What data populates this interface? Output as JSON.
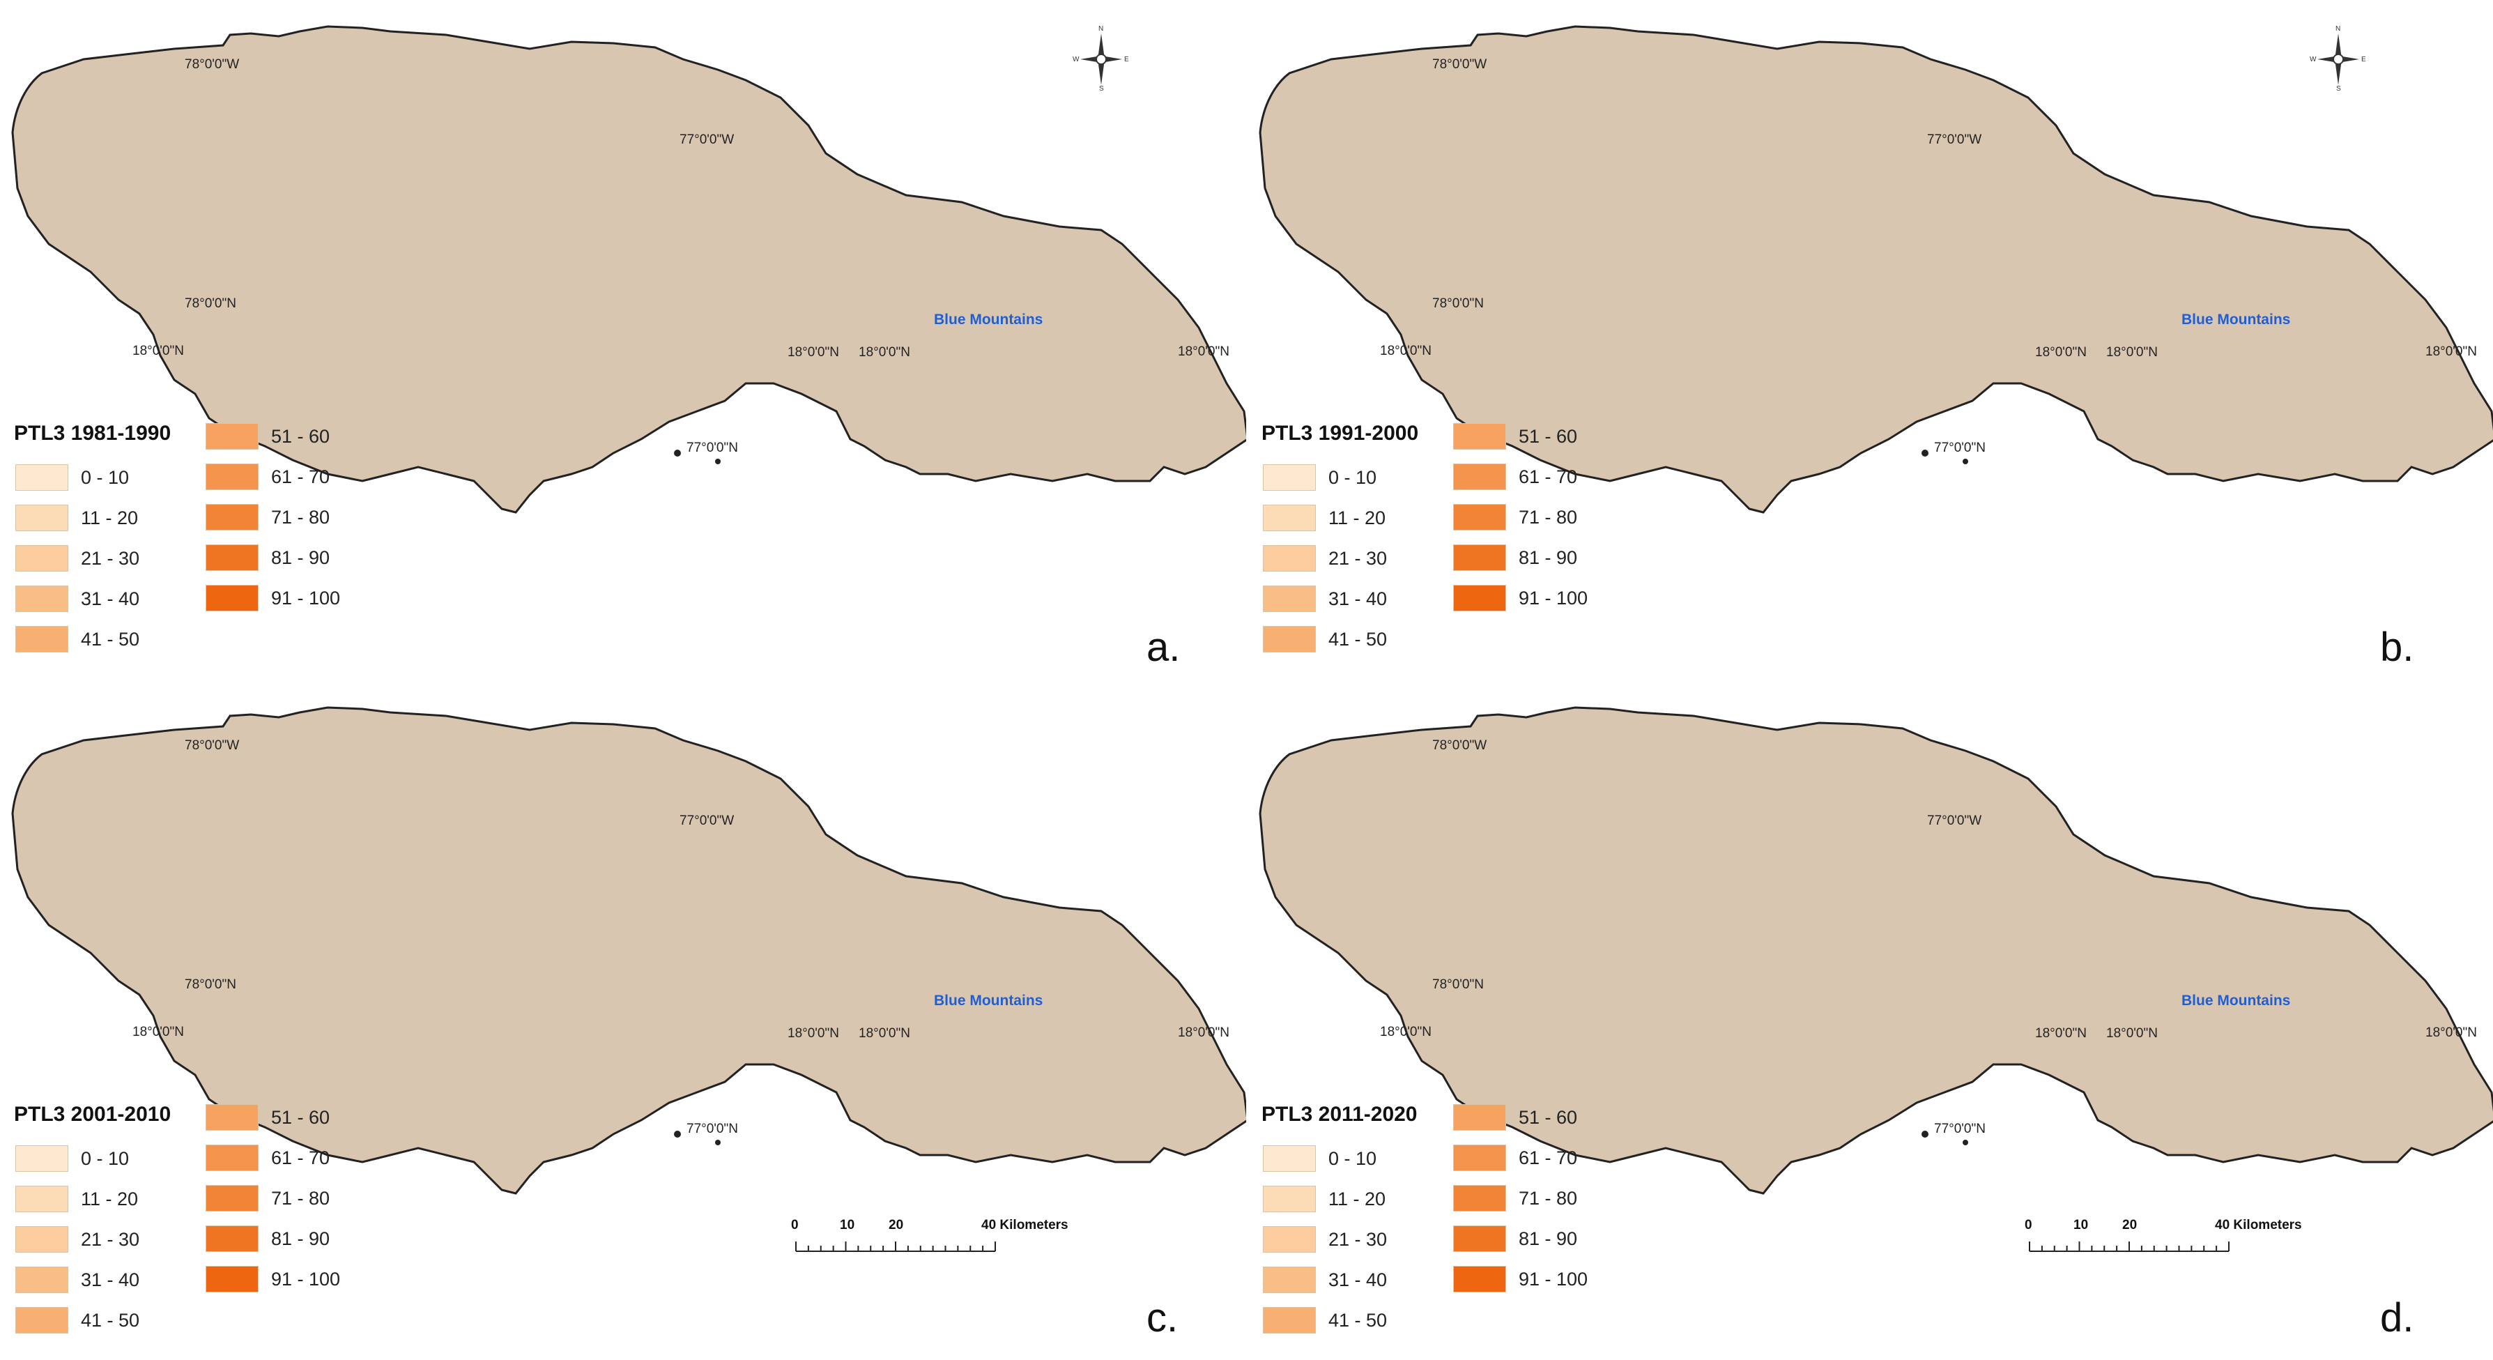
{
  "panels": [
    {
      "id": "a",
      "letter": "a.",
      "legend_title": "PTL3 1981-1990",
      "has_scale": false,
      "has_compass": true
    },
    {
      "id": "b",
      "letter": "b.",
      "legend_title": "PTL3 1991-2000",
      "has_scale": false,
      "has_compass": true
    },
    {
      "id": "c",
      "letter": "c.",
      "legend_title": "PTL3 2001-2010",
      "has_scale": true,
      "has_compass": false
    },
    {
      "id": "d",
      "letter": "d.",
      "legend_title": "PTL3 2011-2020",
      "has_scale": true,
      "has_compass": false
    }
  ],
  "legend_classes": [
    {
      "label": "0 - 10",
      "color": "#fde9cf"
    },
    {
      "label": "11 - 20",
      "color": "#fcdcb6"
    },
    {
      "label": "21 - 30",
      "color": "#fbcd9e"
    },
    {
      "label": "31 - 40",
      "color": "#f9be86"
    },
    {
      "label": "41 - 50",
      "color": "#f8b072"
    },
    {
      "label": "51 - 60",
      "color": "#f6a260"
    },
    {
      "label": "61 - 70",
      "color": "#f4934b"
    },
    {
      "label": "71 - 80",
      "color": "#f28436"
    },
    {
      "label": "81 - 90",
      "color": "#f07522"
    },
    {
      "label": "91 - 100",
      "color": "#ee6610"
    }
  ],
  "coord_labels": {
    "lon_78": "78°0'0\"W",
    "lon_77_north": "77°0'0\"W",
    "lat_78_left": "78°0'0\"N",
    "lat_18_left": "18°0'0\"N",
    "lat_18_mid_a": "18°0'0\"N",
    "lat_18_mid_b": "18°0'0\"N",
    "lat_18_right": "18°0'0\"N",
    "lon_77_south": "77°0'0\"N"
  },
  "place_label": "Blue Mountains",
  "scale_bar": {
    "ticks": [
      "0",
      "10",
      "20"
    ],
    "end_label": "40 Kilometers"
  },
  "compass": {
    "n": "N",
    "s": "S",
    "e": "E",
    "w": "W"
  },
  "colors": {
    "land": "#d8c6b0",
    "coast": "#222222",
    "boundary": "#2a2a2a",
    "nodata": "#dcdce6"
  }
}
